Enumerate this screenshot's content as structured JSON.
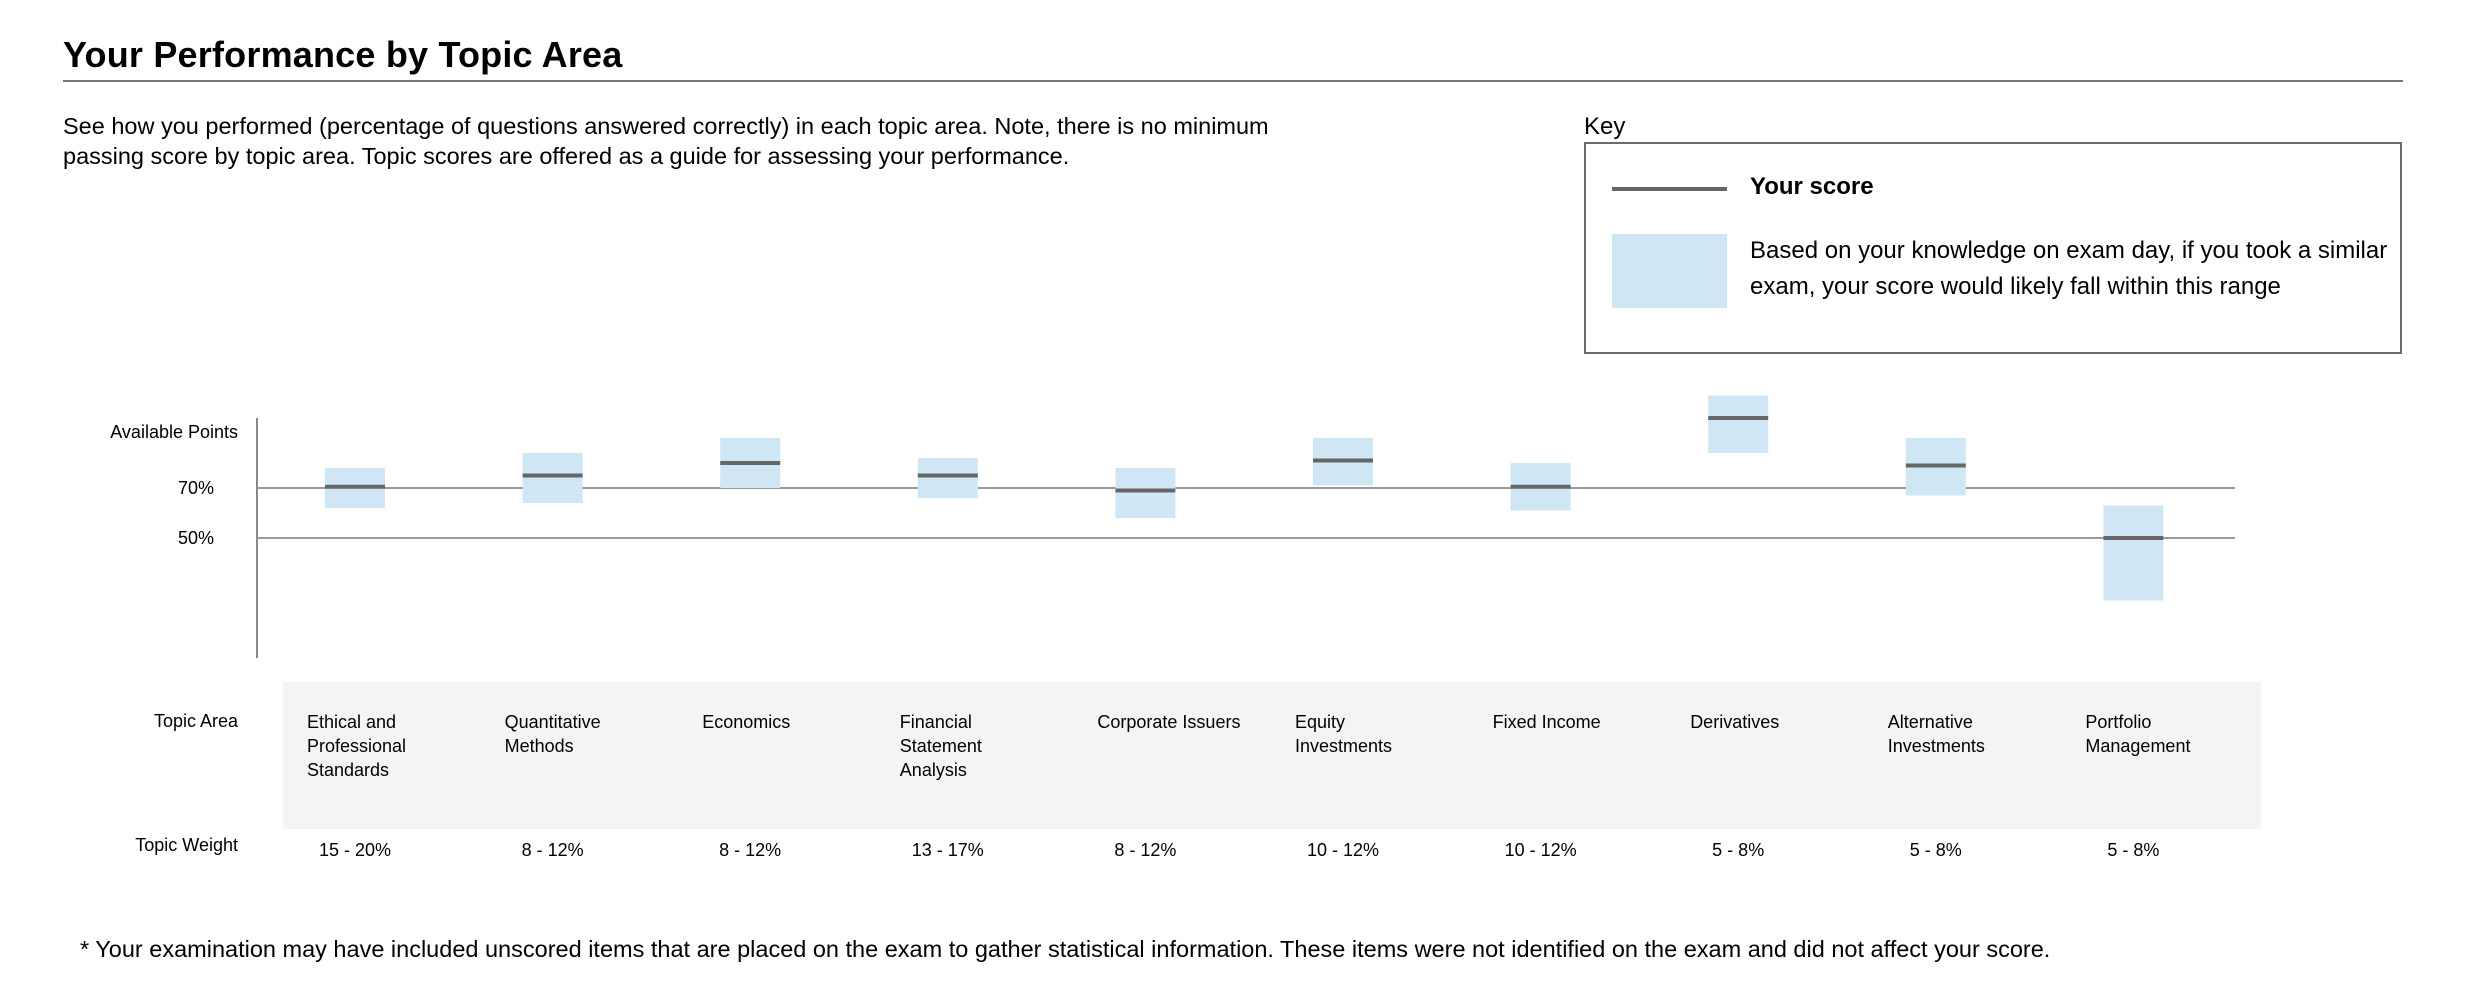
{
  "header": {
    "title": "Your Performance by Topic Area",
    "intro": "See how you performed (percentage of questions answered correctly) in each topic area. Note, there is no minimum passing score by topic area. Topic scores are offered as a guide for assessing your performance."
  },
  "key": {
    "label": "Key",
    "score_label": "Your score",
    "range_label": "Based on your knowledge on exam day, if you took a similar exam, your score would likely fall within this range"
  },
  "rows": {
    "topic_area": "Topic Area",
    "topic_weight": "Topic Weight"
  },
  "colors": {
    "range_fill": "#cfe6f4",
    "score_line": "#666666",
    "reference_line": "#9a9a9a",
    "topic_band": "#f4f4f4"
  },
  "chart_data": {
    "type": "range-marker",
    "y_axis_title": "Available Points",
    "reference_lines": [
      {
        "label": "70%",
        "value": 70
      },
      {
        "label": "50%",
        "value": 50
      }
    ],
    "categories": [
      "Ethical and Professional Standards",
      "Quantitative Methods",
      "Economics",
      "Financial Statement Analysis",
      "Corporate Issuers",
      "Equity Investments",
      "Fixed Income",
      "Derivatives",
      "Alternative Investments",
      "Portfolio Management"
    ],
    "weights": [
      "15 - 20%",
      "8 - 12%",
      "8 - 12%",
      "13 - 17%",
      "8 - 12%",
      "10 - 12%",
      "10 - 12%",
      "5 - 8%",
      "5 - 8%",
      "5 - 8%"
    ],
    "series": [
      {
        "name": "Your score",
        "values": [
          70.5,
          75,
          80,
          75,
          69,
          81,
          70.5,
          98,
          79,
          50
        ]
      },
      {
        "name": "range_low",
        "values": [
          62,
          64,
          70,
          66,
          58,
          71,
          61,
          84,
          67,
          25
        ]
      },
      {
        "name": "range_high",
        "values": [
          78,
          84,
          90,
          82,
          78,
          90,
          80,
          107,
          90,
          63
        ]
      }
    ]
  },
  "footnote": "* Your examination may have included unscored items that are placed on the exam to gather statistical information. These items were not identified on the exam and did not affect your score."
}
